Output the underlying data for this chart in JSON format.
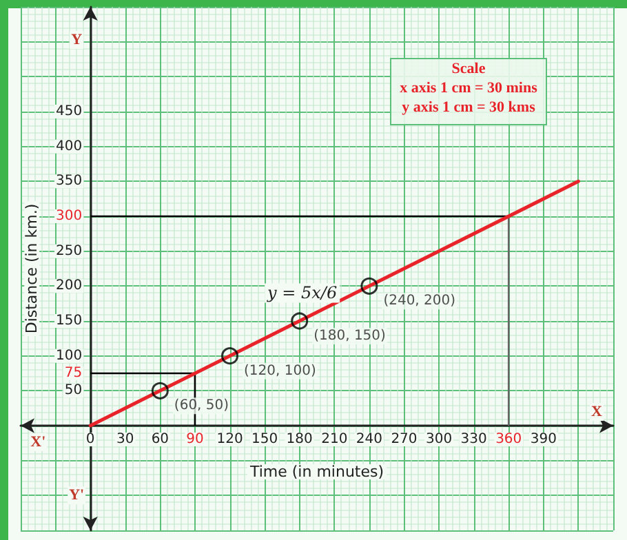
{
  "chart_data": {
    "type": "line",
    "xlabel": "Time (in minutes)",
    "ylabel": "Distance (in km.)",
    "xlim": [
      -60,
      450
    ],
    "ylim": [
      -150,
      600
    ],
    "xticks": [
      0,
      30,
      60,
      90,
      120,
      150,
      180,
      210,
      240,
      270,
      300,
      330,
      360,
      390
    ],
    "yticks": [
      50,
      75,
      100,
      150,
      200,
      250,
      300,
      350,
      400,
      450
    ],
    "grid": true,
    "series": [
      {
        "type": "line",
        "color": "#e8232a",
        "x": [
          0,
          60,
          120,
          180,
          240,
          420
        ],
        "values": [
          0,
          50,
          100,
          150,
          200,
          350
        ]
      },
      {
        "type": "scatter",
        "color": "#000000",
        "marker": "circle",
        "x": [
          60,
          120,
          180,
          240
        ],
        "values": [
          50,
          100,
          150,
          200
        ],
        "value_labels": [
          "(60, 50)",
          "(120, 100)",
          "(180, 150)",
          "(240, 200)"
        ]
      }
    ],
    "ref_lines": [
      {
        "axis": "x",
        "value": 90,
        "color": "#000000"
      },
      {
        "axis": "y",
        "value": 75,
        "color": "#000000"
      },
      {
        "axis": "y",
        "value": 300,
        "color": "#000000"
      },
      {
        "axis": "x",
        "value": 360,
        "color": "#666666"
      }
    ],
    "annotations": [
      "Scale",
      "x axis 1 cm = 30 mins",
      "y axis 1 cm = 30 kms",
      "y = 5x/6",
      "X",
      "X'",
      "Y",
      "Y'"
    ]
  }
}
